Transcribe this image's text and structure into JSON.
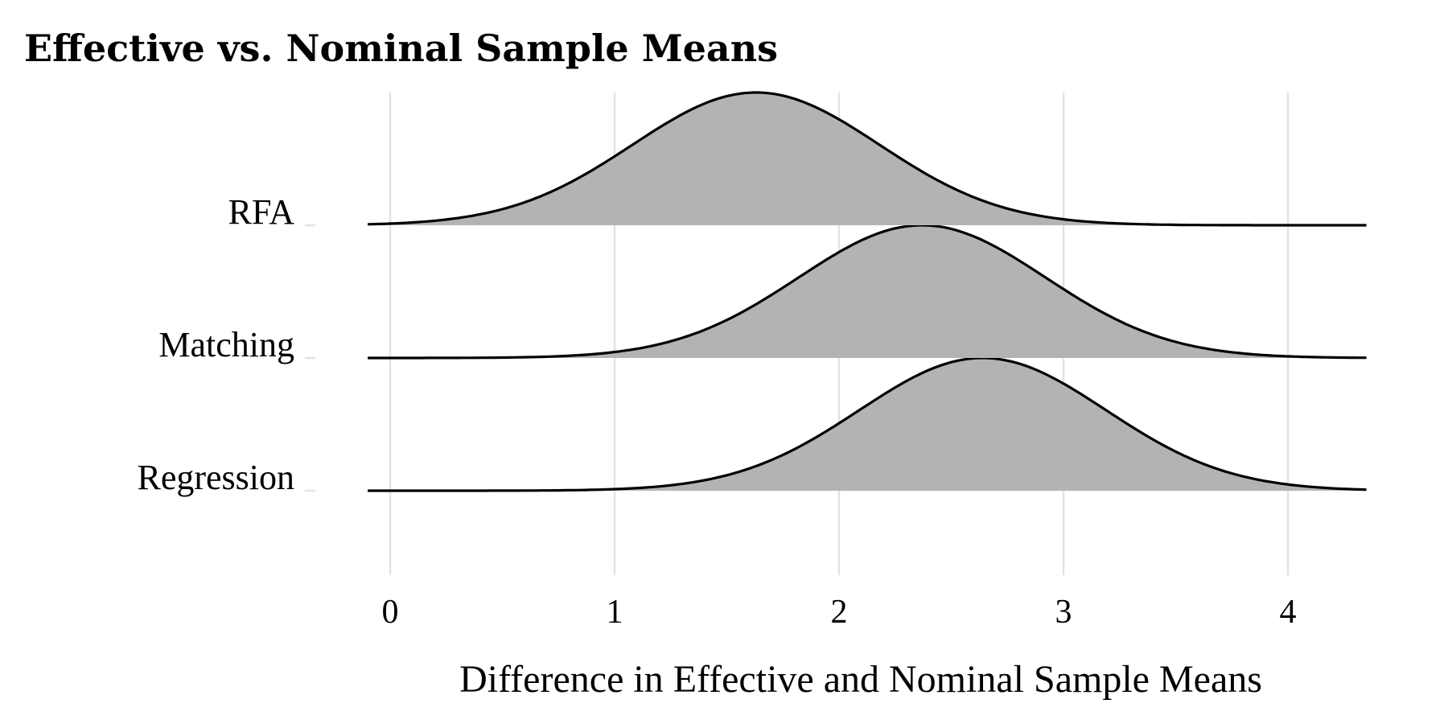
{
  "chart_data": {
    "type": "ridgeline",
    "title": "Effective vs. Nominal Sample Means",
    "xlabel": "Difference in Effective and Nominal Sample Means",
    "ylabel": "",
    "xlim": [
      -0.1,
      4.35
    ],
    "x_ticks": [
      "0",
      "1",
      "2",
      "3",
      "4"
    ],
    "grid": true,
    "fill_color": "#b3b3b3",
    "line_color": "#000000",
    "series": [
      {
        "name": "RFA",
        "mean": 1.63,
        "sd": 0.55,
        "peak_density": 0.725
      },
      {
        "name": "Matching",
        "mean": 2.37,
        "sd": 0.55,
        "peak_density": 0.725
      },
      {
        "name": "Regression",
        "mean": 2.64,
        "sd": 0.55,
        "peak_density": 0.725
      }
    ]
  }
}
